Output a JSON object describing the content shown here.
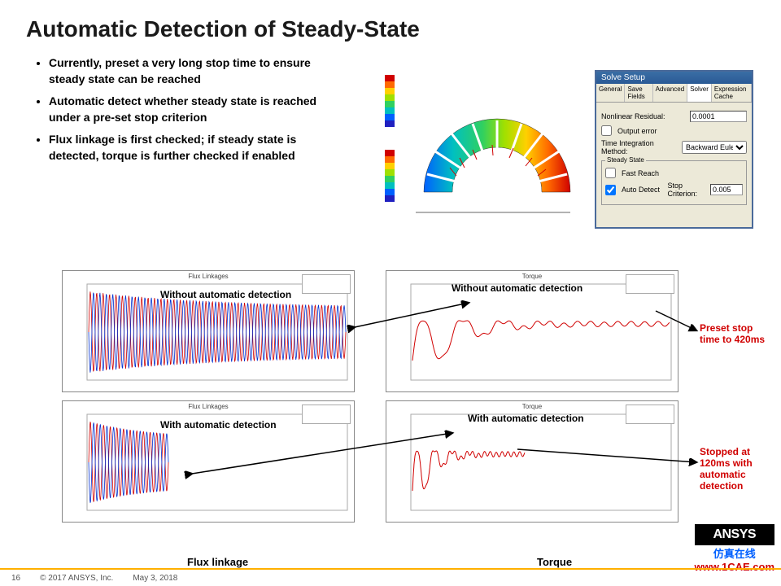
{
  "title": "Automatic Detection of Steady-State",
  "bullets": [
    "Currently, preset a very long stop time to ensure steady state can be reached",
    "Automatic detect whether steady state is reached under a pre-set stop criterion",
    "Flux linkage is first checked; if steady state is detected, torque is further checked if enabled"
  ],
  "solve": {
    "panel_title": "Solve Setup",
    "tabs": [
      "General",
      "Save Fields",
      "Advanced",
      "Solver",
      "Expression Cache"
    ],
    "active_tab": "Solver",
    "nonlinear_label": "Nonlinear Residual:",
    "nonlinear_value": "0.0001",
    "output_error": "Output error",
    "time_int_label": "Time Integration Method:",
    "time_int_value": "Backward Euler",
    "group_title": "Steady State",
    "fast_reach": "Fast Reach",
    "auto_detect": "Auto Detect",
    "stop_crit_label": "Stop Criterion:",
    "stop_crit_value": "0.005"
  },
  "charts": {
    "tl": {
      "title": "Flux Linkages",
      "label": "Without automatic detection",
      "series_colors": [
        "#d00000",
        "#0030d0"
      ],
      "xmax": 420
    },
    "tr": {
      "title": "Torque",
      "label": "Without automatic detection",
      "series_colors": [
        "#d00000"
      ],
      "xmax": 420
    },
    "bl": {
      "title": "Flux Linkages",
      "label": "With automatic detection",
      "series_colors": [
        "#d00000",
        "#0030d0"
      ],
      "xmax": 120
    },
    "br": {
      "title": "Torque",
      "label": "With automatic detection",
      "series_colors": [
        "#d00000"
      ],
      "xmax": 120
    }
  },
  "col_labels": {
    "left": "Flux linkage",
    "right": "Torque"
  },
  "annotations": {
    "right1": "Preset stop time to 420ms",
    "right2": "Stopped at 120ms with automatic detection"
  },
  "fea": {
    "rainbow": [
      "#d00000",
      "#ff6a00",
      "#ffd000",
      "#a0e000",
      "#30d060",
      "#00c0c0",
      "#0060ff",
      "#2020c0"
    ]
  },
  "footer": {
    "page": "16",
    "copyright": "© 2017 ANSYS, Inc.",
    "date": "May 3, 2018"
  },
  "logo": {
    "ansys": "ANSYS",
    "cae1": "仿真在线",
    "cae2": "www.1CAE.com"
  }
}
